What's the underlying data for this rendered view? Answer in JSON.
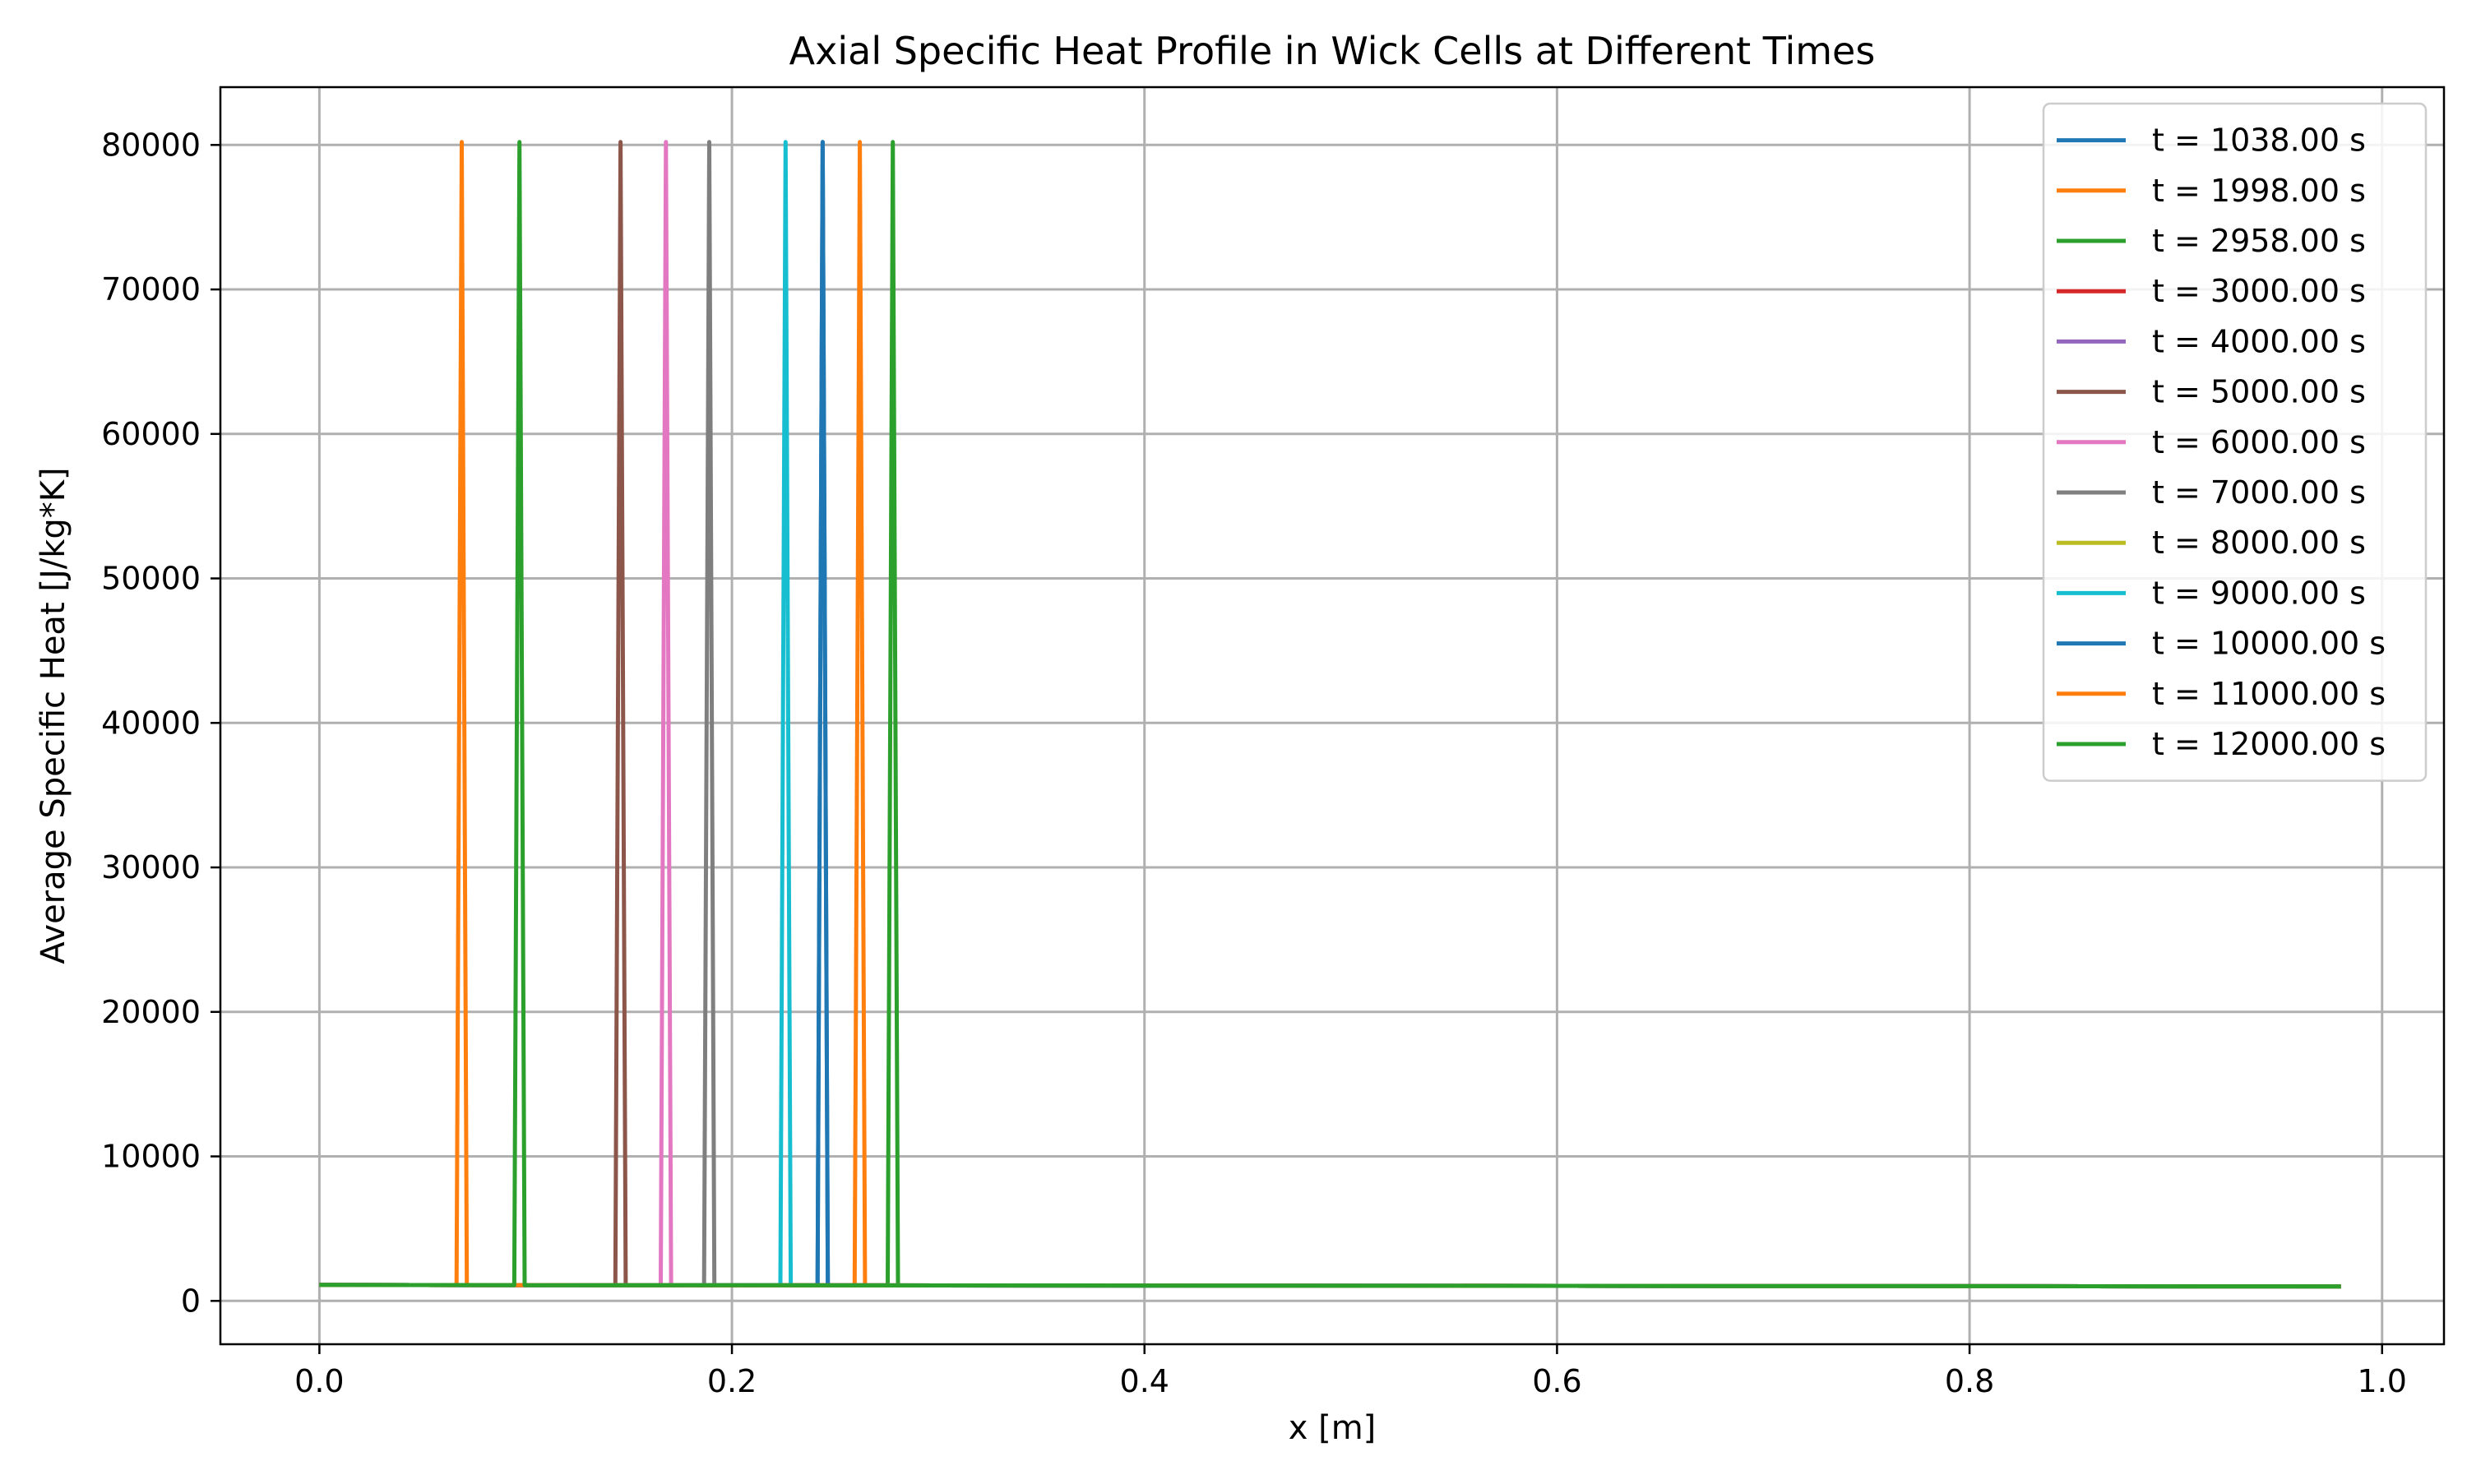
{
  "chart_data": {
    "type": "line",
    "title": "Axial Specific Heat Profile in Wick Cells at Different Times",
    "xlabel": "x [m]",
    "ylabel": "Average Specific Heat [J/kg*K]",
    "xlim": [
      -0.048,
      1.03
    ],
    "ylim": [
      -3000,
      84000
    ],
    "x_ticks": [
      0.0,
      0.2,
      0.4,
      0.6,
      0.8,
      1.0
    ],
    "x_tick_labels": [
      "0.0",
      "0.2",
      "0.4",
      "0.6",
      "0.8",
      "1.0"
    ],
    "y_ticks": [
      0,
      10000,
      20000,
      30000,
      40000,
      50000,
      60000,
      70000,
      80000
    ],
    "y_tick_labels": [
      "0",
      "10000",
      "20000",
      "30000",
      "40000",
      "50000",
      "60000",
      "70000",
      "80000"
    ],
    "grid": true,
    "legend_position": "top-right",
    "x_range": [
      0.0,
      0.98
    ],
    "baseline_start": 1100,
    "baseline_end": 1000,
    "series": [
      {
        "name": "t = 1038.00 s",
        "color": "#1f77b4",
        "spike_x": 0.244,
        "spike_y": 80200
      },
      {
        "name": "t = 1998.00 s",
        "color": "#ff7f0e",
        "spike_x": 0.262,
        "spike_y": 80200
      },
      {
        "name": "t = 2958.00 s",
        "color": "#2ca02c",
        "spike_x": 0.278,
        "spike_y": 80200
      },
      {
        "name": "t = 3000.00 s",
        "color": "#d62728",
        "spike_x": null,
        "spike_y": null
      },
      {
        "name": "t = 4000.00 s",
        "color": "#9467bd",
        "spike_x": null,
        "spike_y": null
      },
      {
        "name": "t = 5000.00 s",
        "color": "#8c564b",
        "spike_x": 0.146,
        "spike_y": 80200
      },
      {
        "name": "t = 6000.00 s",
        "color": "#e377c2",
        "spike_x": 0.168,
        "spike_y": 80200
      },
      {
        "name": "t = 7000.00 s",
        "color": "#7f7f7f",
        "spike_x": 0.189,
        "spike_y": 80200
      },
      {
        "name": "t = 8000.00 s",
        "color": "#bcbd22",
        "spike_x": null,
        "spike_y": null
      },
      {
        "name": "t = 9000.00 s",
        "color": "#17becf",
        "spike_x": 0.226,
        "spike_y": 80200
      },
      {
        "name": "t = 10000.00 s",
        "color": "#1f77b4",
        "spike_x": 0.244,
        "spike_y": 80200
      },
      {
        "name": "t = 11000.00 s",
        "color": "#ff7f0e",
        "spike_x": 0.069,
        "spike_y": 80200
      },
      {
        "name": "t = 12000.00 s",
        "color": "#2ca02c",
        "spike_x": 0.097,
        "spike_y": 80200
      }
    ]
  }
}
